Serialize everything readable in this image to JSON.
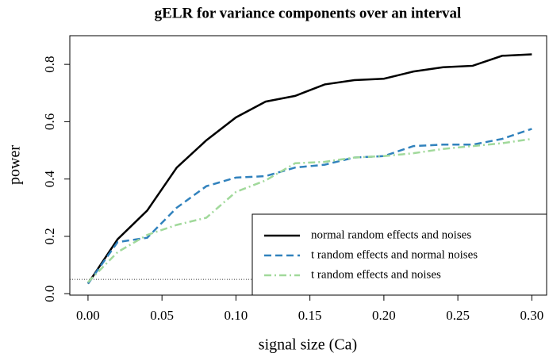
{
  "chart_data": {
    "type": "line",
    "title": "gELR for variance components over an interval",
    "xlabel": "signal size (Ca)",
    "ylabel": "power",
    "x": [
      0,
      0.02,
      0.04,
      0.06,
      0.08,
      0.1,
      0.12,
      0.14,
      0.16,
      0.18,
      0.2,
      0.22,
      0.24,
      0.26,
      0.28,
      0.3
    ],
    "series": [
      {
        "name": "normal random effects and noises",
        "color": "#000000",
        "linestyle": "solid",
        "values": [
          0.035,
          0.19,
          0.29,
          0.44,
          0.535,
          0.615,
          0.67,
          0.69,
          0.73,
          0.745,
          0.75,
          0.775,
          0.79,
          0.795,
          0.83,
          0.835
        ]
      },
      {
        "name": "t random effects and normal noises",
        "color": "#3182bd",
        "linestyle": "dashed",
        "values": [
          0.035,
          0.18,
          0.195,
          0.3,
          0.375,
          0.405,
          0.41,
          0.44,
          0.45,
          0.475,
          0.48,
          0.515,
          0.52,
          0.52,
          0.54,
          0.575
        ]
      },
      {
        "name": "t random effects and noises",
        "color": "#a1d99b",
        "linestyle": "dashdot",
        "values": [
          0.04,
          0.145,
          0.205,
          0.24,
          0.265,
          0.355,
          0.395,
          0.455,
          0.46,
          0.475,
          0.48,
          0.49,
          0.505,
          0.515,
          0.525,
          0.54
        ]
      }
    ],
    "hline": 0.05,
    "xlim": [
      -0.0123,
      0.31
    ],
    "ylim": [
      -0.005,
      0.9
    ],
    "xticks": [
      {
        "value": 0,
        "label": "0.00"
      },
      0.05,
      {
        "value": 0.1,
        "label": "0.10"
      },
      0.15,
      {
        "value": 0.2,
        "label": "0.20"
      },
      0.25,
      {
        "value": 0.3,
        "label": "0.30"
      }
    ],
    "yticks": [
      {
        "value": 0,
        "label": "0.0"
      },
      0.2,
      0.4,
      0.6,
      0.8
    ],
    "legend": "bottom-right"
  }
}
